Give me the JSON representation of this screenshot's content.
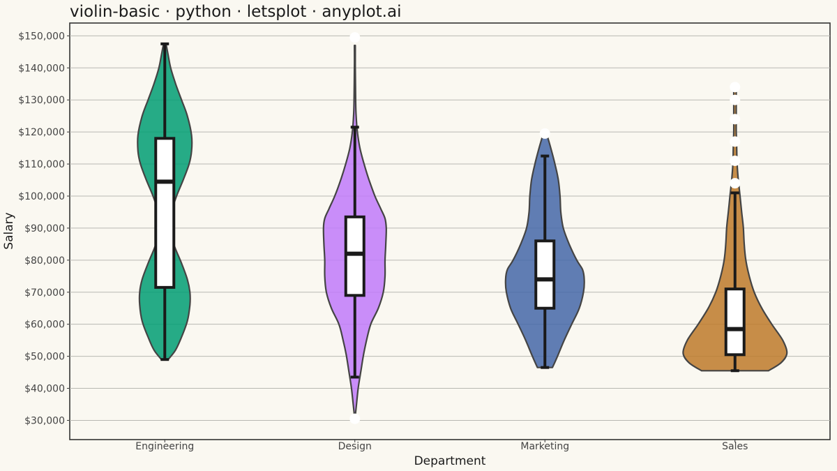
{
  "chart_data": {
    "type": "violin",
    "title": "violin-basic · python · letsplot · anyplot.ai",
    "xlabel": "Department",
    "ylabel": "Salary",
    "ylim": [
      24000,
      154000
    ],
    "y_ticks": [
      30000,
      40000,
      50000,
      60000,
      70000,
      80000,
      90000,
      100000,
      110000,
      120000,
      130000,
      140000,
      150000
    ],
    "y_tick_labels": [
      "$30,000",
      "$40,000",
      "$50,000",
      "$60,000",
      "$70,000",
      "$80,000",
      "$90,000",
      "$100,000",
      "$110,000",
      "$120,000",
      "$130,000",
      "$140,000",
      "$150,000"
    ],
    "grid": true,
    "categories": [
      "Engineering",
      "Design",
      "Marketing",
      "Sales"
    ],
    "series": [
      {
        "category": "Engineering",
        "color": "#009E73",
        "box": {
          "whisker_low": 49000,
          "q1": 71500,
          "median": 104500,
          "q3": 118000,
          "whisker_high": 147500
        },
        "outliers": [],
        "density": [
          [
            49000,
            8
          ],
          [
            52000,
            26
          ],
          [
            56000,
            40
          ],
          [
            61000,
            54
          ],
          [
            66000,
            60
          ],
          [
            70000,
            60
          ],
          [
            74000,
            54
          ],
          [
            79000,
            40
          ],
          [
            84000,
            24
          ],
          [
            88000,
            14
          ],
          [
            91000,
            12
          ],
          [
            95000,
            16
          ],
          [
            100000,
            28
          ],
          [
            105000,
            44
          ],
          [
            110000,
            58
          ],
          [
            114000,
            64
          ],
          [
            119000,
            64
          ],
          [
            125000,
            54
          ],
          [
            130000,
            40
          ],
          [
            135000,
            26
          ],
          [
            140000,
            14
          ],
          [
            144000,
            8
          ],
          [
            147500,
            3
          ]
        ]
      },
      {
        "category": "Design",
        "color": "#C07AFA",
        "box": {
          "whisker_low": 43500,
          "q1": 69000,
          "median": 82000,
          "q3": 93500,
          "whisker_high": 121500
        },
        "outliers": [
          30500,
          149500
        ],
        "density": [
          [
            31500,
            1
          ],
          [
            35000,
            4
          ],
          [
            40000,
            8
          ],
          [
            45000,
            14
          ],
          [
            50000,
            20
          ],
          [
            55000,
            28
          ],
          [
            60000,
            38
          ],
          [
            65000,
            56
          ],
          [
            70000,
            68
          ],
          [
            75000,
            72
          ],
          [
            80000,
            72
          ],
          [
            85000,
            74
          ],
          [
            90000,
            75
          ],
          [
            93000,
            72
          ],
          [
            96000,
            62
          ],
          [
            100000,
            48
          ],
          [
            105000,
            34
          ],
          [
            110000,
            22
          ],
          [
            115000,
            12
          ],
          [
            120000,
            6
          ],
          [
            125000,
            3
          ],
          [
            130000,
            2
          ],
          [
            140000,
            1
          ],
          [
            147000,
            1
          ]
        ]
      },
      {
        "category": "Marketing",
        "color": "#4467A8",
        "box": {
          "whisker_low": 46500,
          "q1": 65000,
          "median": 74000,
          "q3": 86000,
          "whisker_high": 112500
        },
        "outliers": [
          119500
        ],
        "density": [
          [
            46500,
            18
          ],
          [
            50000,
            30
          ],
          [
            55000,
            46
          ],
          [
            60000,
            64
          ],
          [
            65000,
            82
          ],
          [
            70000,
            92
          ],
          [
            74000,
            94
          ],
          [
            77000,
            90
          ],
          [
            80000,
            76
          ],
          [
            85000,
            58
          ],
          [
            90000,
            44
          ],
          [
            95000,
            38
          ],
          [
            100000,
            36
          ],
          [
            105000,
            32
          ],
          [
            110000,
            24
          ],
          [
            115000,
            14
          ],
          [
            119000,
            5
          ]
        ]
      },
      {
        "category": "Sales",
        "color": "#BD7A2A",
        "box": {
          "whisker_low": 45500,
          "q1": 50500,
          "median": 58500,
          "q3": 71000,
          "whisker_high": 101000
        },
        "outliers": [
          104000,
          111000,
          117000,
          124000,
          130000,
          134000
        ],
        "density": [
          [
            45500,
            80
          ],
          [
            48000,
            110
          ],
          [
            51000,
            124
          ],
          [
            55000,
            114
          ],
          [
            60000,
            88
          ],
          [
            65000,
            64
          ],
          [
            70000,
            46
          ],
          [
            75000,
            34
          ],
          [
            80000,
            26
          ],
          [
            85000,
            22
          ],
          [
            90000,
            20
          ],
          [
            95000,
            16
          ],
          [
            100000,
            12
          ],
          [
            105000,
            8
          ],
          [
            110000,
            5
          ],
          [
            115000,
            4
          ],
          [
            120000,
            3
          ],
          [
            125000,
            3
          ],
          [
            130000,
            3
          ],
          [
            135000,
            3
          ]
        ]
      }
    ]
  }
}
